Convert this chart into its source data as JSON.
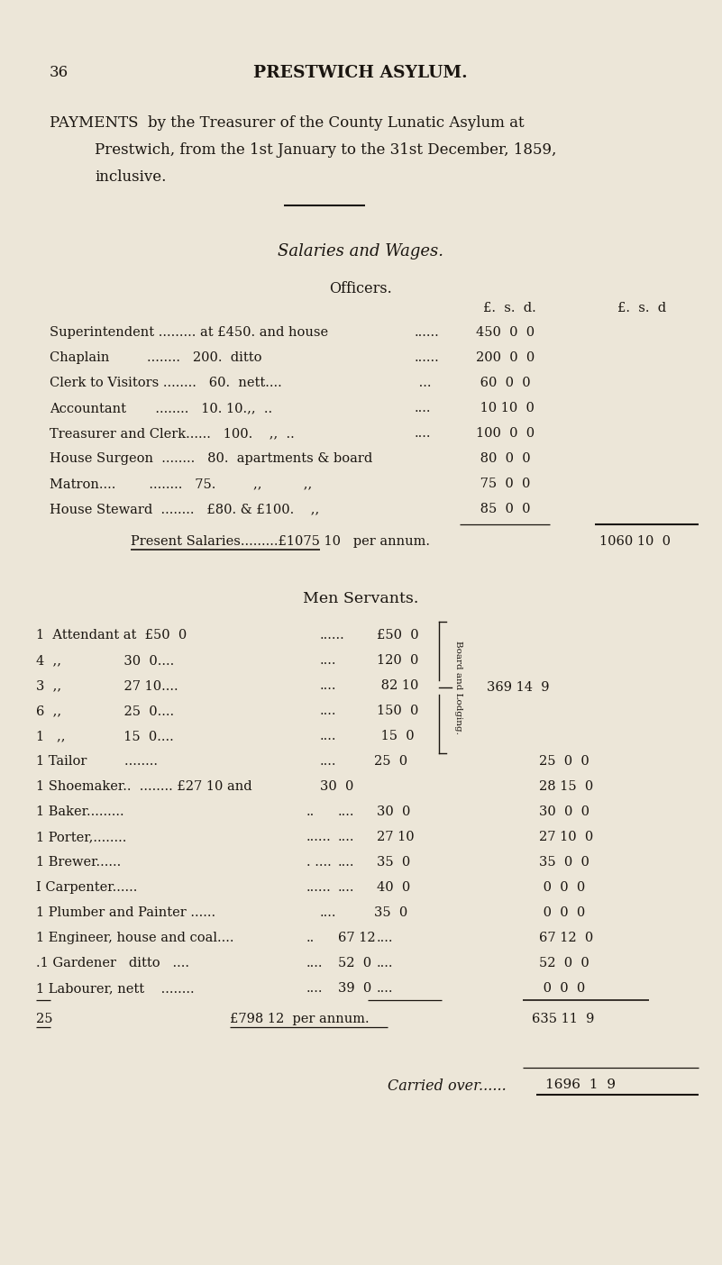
{
  "bg_color": "#ece6d8",
  "text_color": "#1a1510",
  "page_number": "36",
  "page_header": "PRESTWICH ASYLUM.",
  "intro_line1": "PAYMENTS  by the Treasurer of the County Lunatic Asylum at",
  "intro_line2": "Prestwich, from the 1st January to the 31st December, 1859,",
  "intro_line3": "inclusive.",
  "section1_title": "Salaries and Wages.",
  "section1_subtitle": "Officers.",
  "col_header1": "£.  s.  d.",
  "col_header2": "£.  s.  d",
  "total_officers": "1060 10  0",
  "present_salaries_line": "Present Salaries.........£1075 10   per annum.",
  "section2_title": "Men Servants.",
  "bracket_total": "369 14  9",
  "bracket_label": "Board and Lodging.",
  "total_count": "25",
  "total_men_annum": "£798 12  per annum.",
  "total_men_paid": "635 11  9",
  "carried_over_label": "Carried over......",
  "carried_over_value": "1696  1  9"
}
